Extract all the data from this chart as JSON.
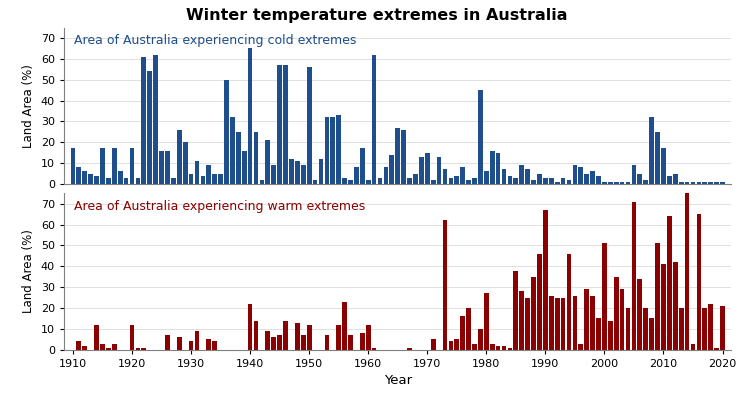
{
  "title": "Winter temperature extremes in Australia",
  "cold_label": "Area of Australia experiencing cold extremes",
  "warm_label": "Area of Australia experiencing warm extremes",
  "ylabel": "Land Area (%)",
  "xlabel": "Year",
  "cold_color": "#1F4E8C",
  "warm_color": "#8B0000",
  "ylim": [
    0,
    75
  ],
  "yticks": [
    0,
    10,
    20,
    30,
    40,
    50,
    60,
    70
  ],
  "xlim": [
    1908.5,
    2021.5
  ],
  "xticks": [
    1910,
    1920,
    1930,
    1940,
    1950,
    1960,
    1970,
    1980,
    1990,
    2000,
    2010,
    2020
  ],
  "cold_data": {
    "1910": 17,
    "1911": 8,
    "1912": 6,
    "1913": 5,
    "1914": 4,
    "1915": 17,
    "1916": 3,
    "1917": 17,
    "1918": 6,
    "1919": 3,
    "1920": 17,
    "1921": 3,
    "1922": 61,
    "1923": 54,
    "1924": 62,
    "1925": 16,
    "1926": 16,
    "1927": 3,
    "1928": 26,
    "1929": 20,
    "1930": 5,
    "1931": 11,
    "1932": 4,
    "1933": 9,
    "1934": 5,
    "1935": 5,
    "1936": 50,
    "1937": 32,
    "1938": 25,
    "1939": 16,
    "1940": 65,
    "1941": 25,
    "1942": 2,
    "1943": 21,
    "1944": 9,
    "1945": 57,
    "1946": 57,
    "1947": 12,
    "1948": 11,
    "1949": 9,
    "1950": 56,
    "1951": 2,
    "1952": 12,
    "1953": 32,
    "1954": 32,
    "1955": 33,
    "1956": 3,
    "1957": 2,
    "1958": 8,
    "1959": 17,
    "1960": 2,
    "1961": 62,
    "1962": 3,
    "1963": 8,
    "1964": 14,
    "1965": 27,
    "1966": 26,
    "1967": 3,
    "1968": 5,
    "1969": 13,
    "1970": 15,
    "1971": 2,
    "1972": 13,
    "1973": 7,
    "1974": 3,
    "1975": 4,
    "1976": 8,
    "1977": 2,
    "1978": 3,
    "1979": 45,
    "1980": 6,
    "1981": 16,
    "1982": 15,
    "1983": 7,
    "1984": 4,
    "1985": 3,
    "1986": 9,
    "1987": 7,
    "1988": 2,
    "1989": 5,
    "1990": 3,
    "1991": 3,
    "1992": 1,
    "1993": 3,
    "1994": 2,
    "1995": 9,
    "1996": 8,
    "1997": 5,
    "1998": 6,
    "1999": 4,
    "2000": 1,
    "2001": 1,
    "2002": 1,
    "2003": 1,
    "2004": 1,
    "2005": 9,
    "2006": 5,
    "2007": 2,
    "2008": 32,
    "2009": 25,
    "2010": 17,
    "2011": 4,
    "2012": 5,
    "2013": 1,
    "2014": 1,
    "2015": 1,
    "2016": 1,
    "2017": 1,
    "2018": 1,
    "2019": 1,
    "2020": 1
  },
  "warm_data": {
    "1910": 0,
    "1911": 4,
    "1912": 2,
    "1913": 0,
    "1914": 12,
    "1915": 3,
    "1916": 1,
    "1917": 3,
    "1918": 0,
    "1919": 0,
    "1920": 12,
    "1921": 1,
    "1922": 1,
    "1923": 0,
    "1924": 0,
    "1925": 0,
    "1926": 7,
    "1927": 0,
    "1928": 6,
    "1929": 0,
    "1930": 4,
    "1931": 9,
    "1932": 0,
    "1933": 5,
    "1934": 4,
    "1935": 0,
    "1936": 0,
    "1937": 0,
    "1938": 0,
    "1939": 0,
    "1940": 22,
    "1941": 14,
    "1942": 0,
    "1943": 9,
    "1944": 6,
    "1945": 7,
    "1946": 14,
    "1947": 0,
    "1948": 13,
    "1949": 7,
    "1950": 12,
    "1951": 0,
    "1952": 0,
    "1953": 7,
    "1954": 0,
    "1955": 12,
    "1956": 23,
    "1957": 7,
    "1958": 0,
    "1959": 8,
    "1960": 12,
    "1961": 1,
    "1962": 0,
    "1963": 0,
    "1964": 0,
    "1965": 0,
    "1966": 0,
    "1967": 1,
    "1968": 0,
    "1969": 0,
    "1970": 0,
    "1971": 5,
    "1972": 0,
    "1973": 62,
    "1974": 4,
    "1975": 5,
    "1976": 16,
    "1977": 20,
    "1978": 3,
    "1979": 10,
    "1980": 27,
    "1981": 3,
    "1982": 2,
    "1983": 2,
    "1984": 1,
    "1985": 38,
    "1986": 28,
    "1987": 25,
    "1988": 35,
    "1989": 46,
    "1990": 67,
    "1991": 26,
    "1992": 25,
    "1993": 25,
    "1994": 46,
    "1995": 26,
    "1996": 3,
    "1997": 29,
    "1998": 26,
    "1999": 15,
    "2000": 51,
    "2001": 14,
    "2002": 35,
    "2003": 29,
    "2004": 20,
    "2005": 71,
    "2006": 34,
    "2007": 20,
    "2008": 15,
    "2009": 51,
    "2010": 41,
    "2011": 64,
    "2012": 42,
    "2013": 20,
    "2014": 75,
    "2015": 3,
    "2016": 65,
    "2017": 20,
    "2018": 22,
    "2019": 1,
    "2020": 21
  }
}
